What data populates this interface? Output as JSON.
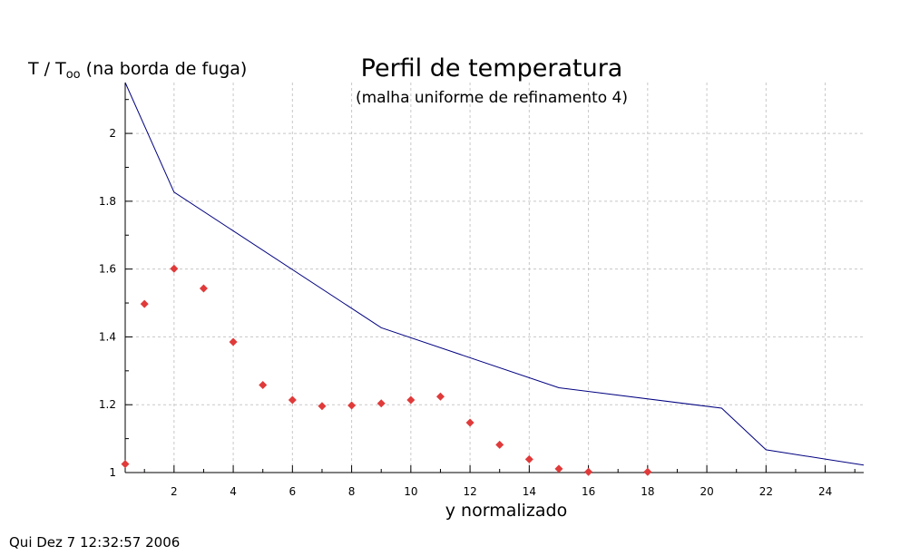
{
  "chart_data": {
    "type": "line",
    "title": "Perfil de temperatura",
    "subtitle": "(malha uniforme de refinamento 4)",
    "xlabel": "y normalizado",
    "ylabel": "T / T",
    "ylabel_subscript": "oo",
    "ylabel_suffix": " (na borda de fuga)",
    "xlim": [
      0.35,
      25.3
    ],
    "ylim": [
      1.0,
      2.15
    ],
    "x_ticks": [
      2,
      4,
      6,
      8,
      10,
      12,
      14,
      16,
      18,
      20,
      22,
      24
    ],
    "y_ticks": [
      1,
      1.2,
      1.4,
      1.6,
      1.8,
      2
    ],
    "y_tick_labels": [
      "1",
      "1.2",
      "1.4",
      "1.6",
      "1.8",
      "2"
    ],
    "grid": true,
    "legend": "none",
    "series": [
      {
        "style": "line",
        "color": "#000080",
        "x": [
          0.35,
          2,
          9,
          15,
          20.5,
          22,
          25.3
        ],
        "y": [
          2.15,
          1.827,
          1.427,
          1.25,
          1.19,
          1.067,
          1.022
        ]
      },
      {
        "style": "markers",
        "marker": "diamond",
        "color": "#e03a3a",
        "x": [
          0.35,
          1,
          2,
          3,
          4,
          5,
          6,
          7,
          8,
          9,
          10,
          11,
          12,
          13,
          14,
          15,
          16,
          18
        ],
        "y": [
          1.025,
          1.497,
          1.601,
          1.543,
          1.385,
          1.258,
          1.214,
          1.196,
          1.198,
          1.204,
          1.214,
          1.224,
          1.147,
          1.082,
          1.039,
          1.011,
          1.002,
          1.002
        ]
      }
    ]
  },
  "footer": {
    "timestamp": "Qui Dez 7 12:32:57 2006"
  }
}
